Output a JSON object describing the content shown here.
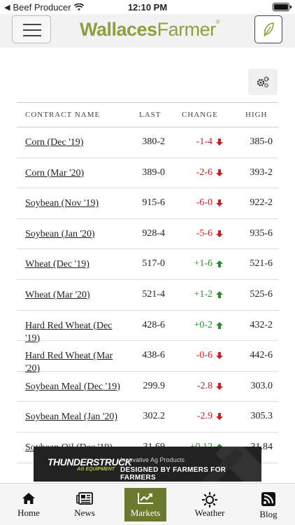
{
  "status_bar": {
    "carrier": "Beef Producer",
    "time": "12:10 PM"
  },
  "header": {
    "logo_part1": "Wallaces",
    "logo_part2": "Farmer",
    "logo_mark": "®"
  },
  "table": {
    "columns": [
      "CONTRACT NAME",
      "LAST",
      "CHANGE",
      "HIGH"
    ],
    "rows": [
      {
        "name": "Corn (Dec '19)",
        "last": "380-2",
        "change": "-1-4",
        "dir": "down",
        "high": "385-0"
      },
      {
        "name": "Corn (Mar '20)",
        "last": "389-0",
        "change": "-2-6",
        "dir": "down",
        "high": "393-2"
      },
      {
        "name": "Soybean (Nov '19)",
        "last": "915-6",
        "change": "-6-0",
        "dir": "down",
        "high": "922-2"
      },
      {
        "name": "Soybean (Jan '20)",
        "last": "928-4",
        "change": "-5-6",
        "dir": "down",
        "high": "935-6"
      },
      {
        "name": "Wheat (Dec '19)",
        "last": "517-0",
        "change": "+1-6",
        "dir": "up",
        "high": "521-6"
      },
      {
        "name": "Wheat (Mar '20)",
        "last": "521-4",
        "change": "+1-2",
        "dir": "up",
        "high": "525-6"
      },
      {
        "name": "Hard Red Wheat (Dec '19)",
        "last": "428-6",
        "change": "+0-2",
        "dir": "up",
        "high": "432-2"
      },
      {
        "name": "Hard Red Wheat (Mar '20)",
        "last": "438-6",
        "change": "-0-6",
        "dir": "down",
        "high": "442-6"
      },
      {
        "name": "Soybean Meal (Dec '19)",
        "last": "299.9",
        "change": "-2.8",
        "dir": "down",
        "high": "303.0"
      },
      {
        "name": "Soybean Meal (Jan '20)",
        "last": "302.2",
        "change": "-2.9",
        "dir": "down",
        "high": "305.3"
      },
      {
        "name": "Soybean Oil (Dec '19)",
        "last": "31.69",
        "change": "+0.12",
        "dir": "up",
        "high": "31.84"
      }
    ]
  },
  "ad": {
    "brand_line1": "THUNDERSTRUCK",
    "brand_line2": "AG EQUIPMENT",
    "tagline_small": "Innovative Ag Products",
    "tagline_big": "DESIGNED BY FARMERS FOR FARMERS"
  },
  "tabs": [
    {
      "label": "Home",
      "icon": "home-icon"
    },
    {
      "label": "News",
      "icon": "newspaper-icon"
    },
    {
      "label": "Markets",
      "icon": "chart-line-icon",
      "active": true
    },
    {
      "label": "Weather",
      "icon": "sun-icon"
    },
    {
      "label": "Blog",
      "icon": "rss-icon"
    }
  ],
  "colors": {
    "accent": "#6b7a2c",
    "logo": "#8ca03c",
    "down": "#cc1f1f",
    "up": "#2e8b2e"
  }
}
